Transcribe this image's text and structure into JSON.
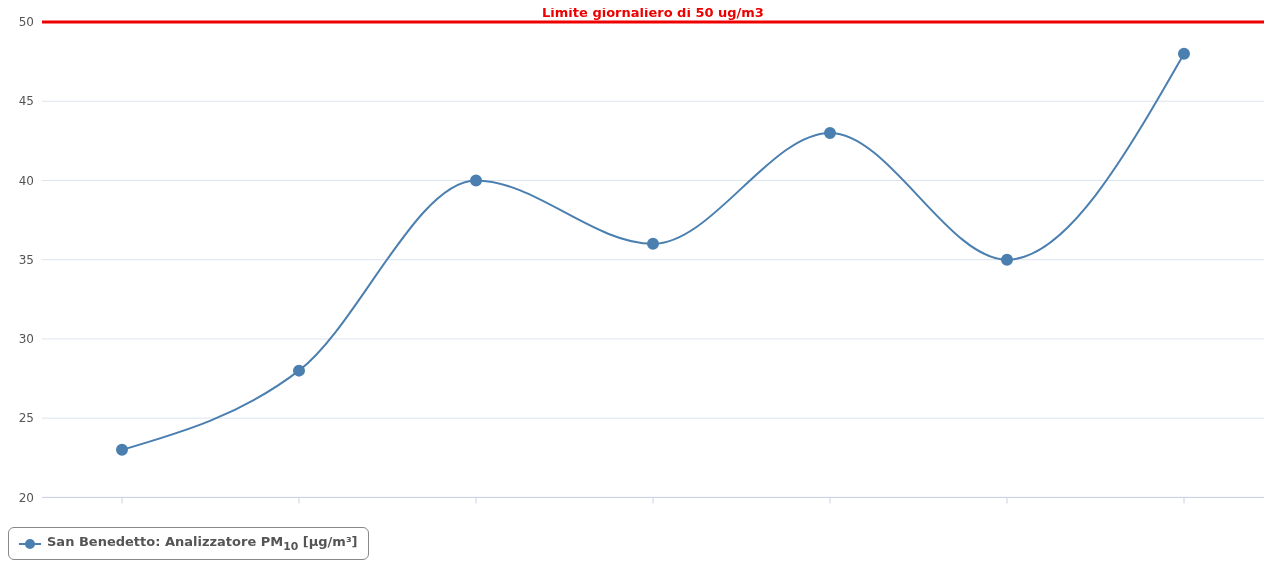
{
  "chart_data": {
    "type": "line",
    "categories": [
      null,
      null,
      null,
      null,
      null,
      null,
      null
    ],
    "series": [
      {
        "name": "San Benedetto: Analizzatore PM$_{10}$ [µg/m³]",
        "color": "#4a7fb0",
        "values": [
          23,
          28,
          40,
          36,
          43,
          35,
          48
        ]
      }
    ],
    "ylim": [
      20,
      50
    ],
    "yticks": [
      20,
      25,
      30,
      35,
      40,
      45,
      50
    ],
    "grid": "y",
    "marker": "circle",
    "line_style": "solid",
    "legend": "bottom left",
    "ref_lines": [
      {
        "axis": "y",
        "value": 50,
        "label": "Limite giornaliero di 50 ug/m3",
        "color": "#ee0000"
      }
    ]
  }
}
